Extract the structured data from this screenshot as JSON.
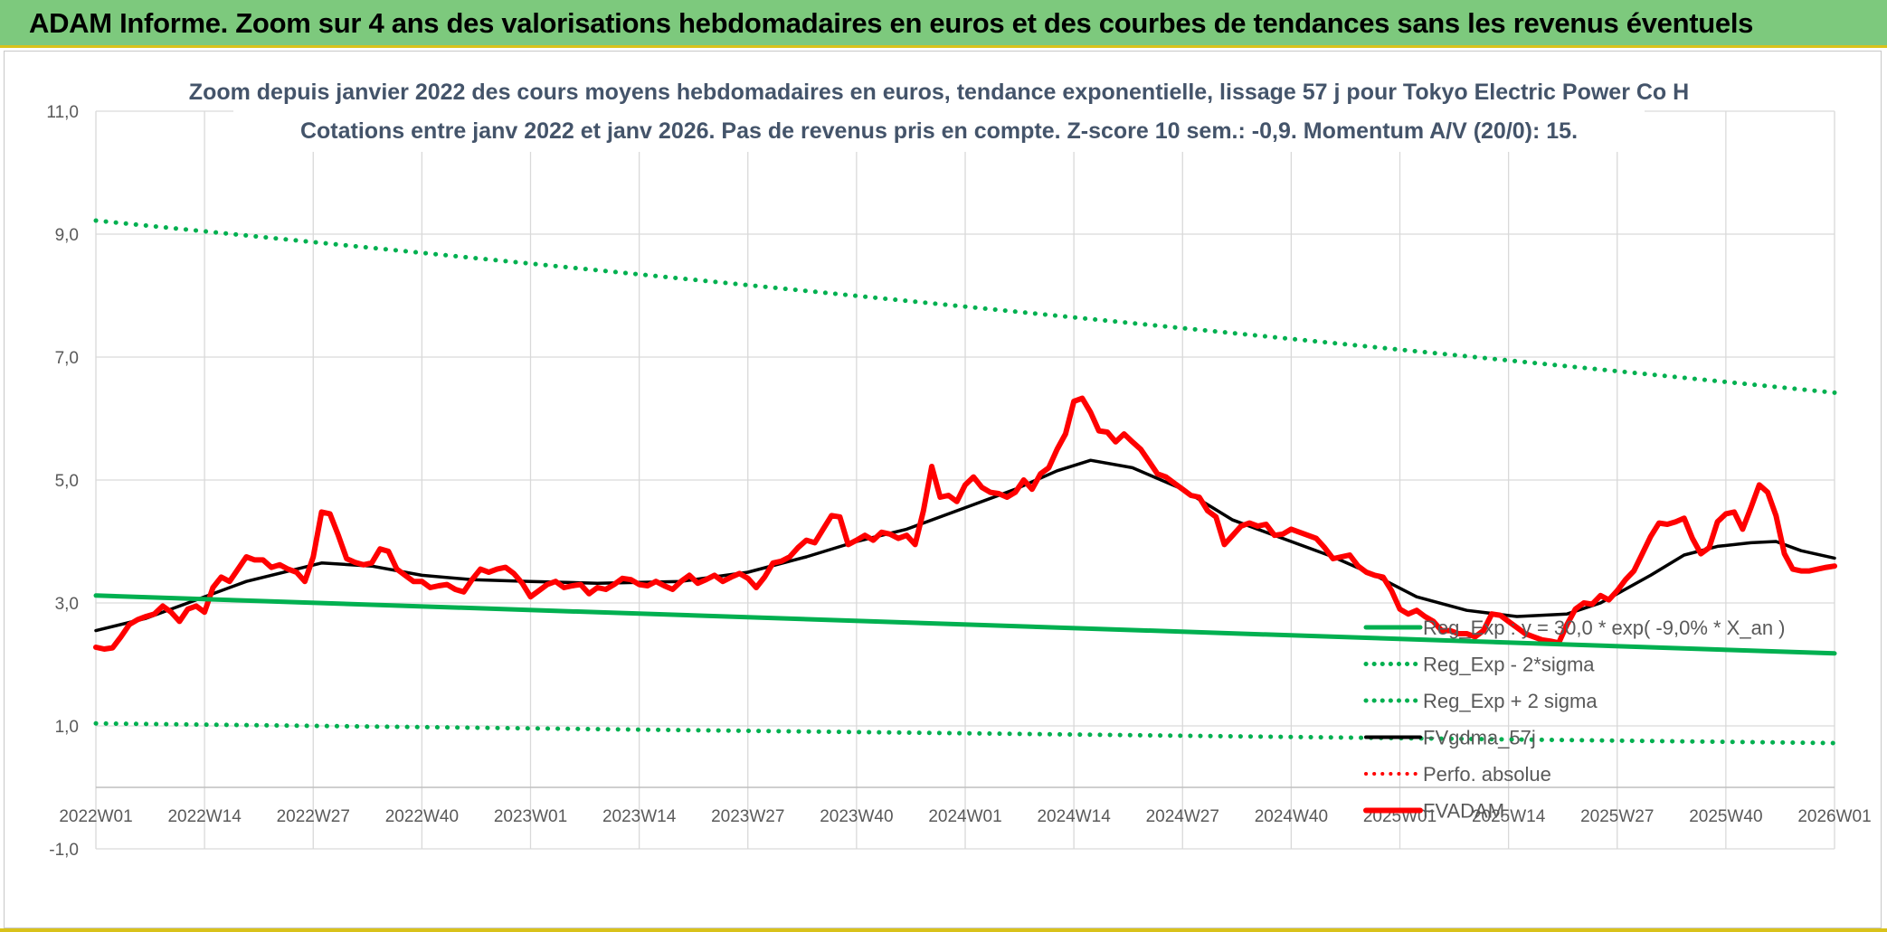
{
  "banner": {
    "title": "ADAM Informe. Zoom sur 4 ans des valorisations hebdomadaires en euros et des courbes de tendances sans les revenus éventuels"
  },
  "colors": {
    "banner_bg": "#7dc97d",
    "accent_gold": "#d9c21a",
    "green": "#00b050",
    "black": "#000000",
    "red": "#ff0000"
  },
  "chart_data": {
    "type": "line",
    "title": "Zoom depuis janvier 2022 des cours moyens hebdomadaires en euros, tendance exponentielle, lissage 57 j pour Tokyo Electric Power Co H",
    "subtitle": "Cotations entre janv 2022 et janv 2026. Pas de revenus pris en compte. Z-score 10 sem.: -0,9. Momentum A/V (20/0): 15.",
    "xlabel": "",
    "ylabel": "",
    "ylim": [
      -1,
      11
    ],
    "y_ticks": [
      "-1,0",
      "1,0",
      "3,0",
      "5,0",
      "7,0",
      "9,0",
      "11,0"
    ],
    "x_range": [
      0,
      208
    ],
    "x_ticks": [
      {
        "x": 0,
        "label": "2022W01"
      },
      {
        "x": 13,
        "label": "2022W14"
      },
      {
        "x": 26,
        "label": "2022W27"
      },
      {
        "x": 39,
        "label": "2022W40"
      },
      {
        "x": 52,
        "label": "2023W01"
      },
      {
        "x": 65,
        "label": "2023W14"
      },
      {
        "x": 78,
        "label": "2023W27"
      },
      {
        "x": 91,
        "label": "2023W40"
      },
      {
        "x": 104,
        "label": "2024W01"
      },
      {
        "x": 117,
        "label": "2024W14"
      },
      {
        "x": 130,
        "label": "2024W27"
      },
      {
        "x": 143,
        "label": "2024W40"
      },
      {
        "x": 156,
        "label": "2025W01"
      },
      {
        "x": 169,
        "label": "2025W14"
      },
      {
        "x": 182,
        "label": "2025W27"
      },
      {
        "x": 195,
        "label": "2025W40"
      },
      {
        "x": 208,
        "label": "2026W01"
      }
    ],
    "grid": true,
    "legend_position": "bottom-right",
    "series": [
      {
        "name": "Reg_Exp : y = 30,0 * exp( -9,0% *  X_an )",
        "color": "#00b050",
        "style": "solid",
        "width": 5,
        "points": [
          [
            0,
            3.12
          ],
          [
            208,
            2.18
          ]
        ]
      },
      {
        "name": "Reg_Exp - 2*sigma",
        "color": "#00b050",
        "style": "dotted",
        "width": 5,
        "points": [
          [
            0,
            1.04
          ],
          [
            208,
            0.72
          ]
        ]
      },
      {
        "name": "Reg_Exp + 2 sigma",
        "color": "#00b050",
        "style": "dotted",
        "width": 5,
        "points": [
          [
            0,
            9.22
          ],
          [
            208,
            6.42
          ]
        ]
      },
      {
        "name": "FVgdma_57j",
        "color": "#000000",
        "style": "solid",
        "width": 3.5,
        "points": [
          [
            0,
            2.55
          ],
          [
            6,
            2.75
          ],
          [
            12,
            3.05
          ],
          [
            18,
            3.35
          ],
          [
            24,
            3.55
          ],
          [
            27,
            3.65
          ],
          [
            33,
            3.6
          ],
          [
            39,
            3.45
          ],
          [
            45,
            3.38
          ],
          [
            52,
            3.35
          ],
          [
            60,
            3.32
          ],
          [
            70,
            3.35
          ],
          [
            78,
            3.5
          ],
          [
            85,
            3.75
          ],
          [
            91,
            4.0
          ],
          [
            97,
            4.2
          ],
          [
            104,
            4.55
          ],
          [
            110,
            4.85
          ],
          [
            115,
            5.15
          ],
          [
            119,
            5.32
          ],
          [
            124,
            5.2
          ],
          [
            130,
            4.85
          ],
          [
            136,
            4.35
          ],
          [
            142,
            4.05
          ],
          [
            148,
            3.75
          ],
          [
            153,
            3.45
          ],
          [
            158,
            3.1
          ],
          [
            164,
            2.88
          ],
          [
            170,
            2.78
          ],
          [
            176,
            2.82
          ],
          [
            180,
            3.0
          ],
          [
            186,
            3.45
          ],
          [
            190,
            3.78
          ],
          [
            194,
            3.92
          ],
          [
            198,
            3.98
          ],
          [
            201,
            4.0
          ],
          [
            204,
            3.85
          ],
          [
            208,
            3.73
          ]
        ]
      },
      {
        "name": "Perfo. absolue",
        "color": "#ff0000",
        "style": "dotted",
        "width": 3,
        "points": []
      },
      {
        "name": "FVADAM",
        "color": "#ff0000",
        "style": "solid",
        "width": 6,
        "points": [
          [
            0,
            2.28
          ],
          [
            1,
            2.25
          ],
          [
            2,
            2.27
          ],
          [
            3,
            2.45
          ],
          [
            4,
            2.65
          ],
          [
            5,
            2.73
          ],
          [
            6,
            2.78
          ],
          [
            7,
            2.82
          ],
          [
            8,
            2.95
          ],
          [
            9,
            2.85
          ],
          [
            10,
            2.7
          ],
          [
            11,
            2.9
          ],
          [
            12,
            2.95
          ],
          [
            13,
            2.85
          ],
          [
            14,
            3.25
          ],
          [
            15,
            3.42
          ],
          [
            16,
            3.35
          ],
          [
            17,
            3.55
          ],
          [
            18,
            3.75
          ],
          [
            19,
            3.7
          ],
          [
            20,
            3.7
          ],
          [
            21,
            3.58
          ],
          [
            22,
            3.62
          ],
          [
            23,
            3.55
          ],
          [
            24,
            3.5
          ],
          [
            25,
            3.35
          ],
          [
            26,
            3.75
          ],
          [
            27,
            4.48
          ],
          [
            28,
            4.45
          ],
          [
            29,
            4.1
          ],
          [
            30,
            3.72
          ],
          [
            31,
            3.66
          ],
          [
            32,
            3.62
          ],
          [
            33,
            3.65
          ],
          [
            34,
            3.88
          ],
          [
            35,
            3.84
          ],
          [
            36,
            3.55
          ],
          [
            37,
            3.45
          ],
          [
            38,
            3.35
          ],
          [
            39,
            3.35
          ],
          [
            40,
            3.25
          ],
          [
            41,
            3.28
          ],
          [
            42,
            3.3
          ],
          [
            43,
            3.22
          ],
          [
            44,
            3.18
          ],
          [
            45,
            3.38
          ],
          [
            46,
            3.55
          ],
          [
            47,
            3.5
          ],
          [
            48,
            3.55
          ],
          [
            49,
            3.58
          ],
          [
            50,
            3.48
          ],
          [
            51,
            3.32
          ],
          [
            52,
            3.1
          ],
          [
            53,
            3.2
          ],
          [
            54,
            3.3
          ],
          [
            55,
            3.35
          ],
          [
            56,
            3.25
          ],
          [
            57,
            3.28
          ],
          [
            58,
            3.3
          ],
          [
            59,
            3.15
          ],
          [
            60,
            3.25
          ],
          [
            61,
            3.22
          ],
          [
            62,
            3.3
          ],
          [
            63,
            3.4
          ],
          [
            64,
            3.38
          ],
          [
            65,
            3.3
          ],
          [
            66,
            3.28
          ],
          [
            67,
            3.35
          ],
          [
            68,
            3.28
          ],
          [
            69,
            3.22
          ],
          [
            70,
            3.35
          ],
          [
            71,
            3.45
          ],
          [
            72,
            3.32
          ],
          [
            73,
            3.38
          ],
          [
            74,
            3.45
          ],
          [
            75,
            3.35
          ],
          [
            76,
            3.42
          ],
          [
            77,
            3.48
          ],
          [
            78,
            3.4
          ],
          [
            79,
            3.25
          ],
          [
            80,
            3.42
          ],
          [
            81,
            3.65
          ],
          [
            82,
            3.68
          ],
          [
            83,
            3.75
          ],
          [
            84,
            3.9
          ],
          [
            85,
            4.02
          ],
          [
            86,
            3.98
          ],
          [
            87,
            4.2
          ],
          [
            88,
            4.42
          ],
          [
            89,
            4.4
          ],
          [
            90,
            3.95
          ],
          [
            91,
            4.02
          ],
          [
            92,
            4.1
          ],
          [
            93,
            4.02
          ],
          [
            94,
            4.15
          ],
          [
            95,
            4.12
          ],
          [
            96,
            4.05
          ],
          [
            97,
            4.1
          ],
          [
            98,
            3.95
          ],
          [
            99,
            4.5
          ],
          [
            100,
            5.22
          ],
          [
            101,
            4.72
          ],
          [
            102,
            4.75
          ],
          [
            103,
            4.65
          ],
          [
            104,
            4.92
          ],
          [
            105,
            5.05
          ],
          [
            106,
            4.88
          ],
          [
            107,
            4.8
          ],
          [
            108,
            4.78
          ],
          [
            109,
            4.72
          ],
          [
            110,
            4.8
          ],
          [
            111,
            5.0
          ],
          [
            112,
            4.85
          ],
          [
            113,
            5.1
          ],
          [
            114,
            5.2
          ],
          [
            115,
            5.5
          ],
          [
            116,
            5.75
          ],
          [
            117,
            6.28
          ],
          [
            118,
            6.33
          ],
          [
            119,
            6.1
          ],
          [
            120,
            5.8
          ],
          [
            121,
            5.78
          ],
          [
            122,
            5.62
          ],
          [
            123,
            5.75
          ],
          [
            124,
            5.62
          ],
          [
            125,
            5.5
          ],
          [
            126,
            5.3
          ],
          [
            127,
            5.1
          ],
          [
            128,
            5.05
          ],
          [
            129,
            4.95
          ],
          [
            130,
            4.85
          ],
          [
            131,
            4.75
          ],
          [
            132,
            4.72
          ],
          [
            133,
            4.5
          ],
          [
            134,
            4.4
          ],
          [
            135,
            3.95
          ],
          [
            136,
            4.1
          ],
          [
            137,
            4.25
          ],
          [
            138,
            4.3
          ],
          [
            139,
            4.25
          ],
          [
            140,
            4.28
          ],
          [
            141,
            4.1
          ],
          [
            142,
            4.12
          ],
          [
            143,
            4.2
          ],
          [
            144,
            4.15
          ],
          [
            145,
            4.1
          ],
          [
            146,
            4.05
          ],
          [
            147,
            3.9
          ],
          [
            148,
            3.72
          ],
          [
            149,
            3.75
          ],
          [
            150,
            3.78
          ],
          [
            151,
            3.6
          ],
          [
            152,
            3.5
          ],
          [
            153,
            3.45
          ],
          [
            154,
            3.42
          ],
          [
            155,
            3.2
          ],
          [
            156,
            2.9
          ],
          [
            157,
            2.82
          ],
          [
            158,
            2.88
          ],
          [
            159,
            2.78
          ],
          [
            160,
            2.7
          ],
          [
            161,
            2.55
          ],
          [
            162,
            2.55
          ],
          [
            163,
            2.5
          ],
          [
            164,
            2.5
          ],
          [
            165,
            2.45
          ],
          [
            166,
            2.55
          ],
          [
            167,
            2.82
          ],
          [
            168,
            2.8
          ],
          [
            169,
            2.7
          ],
          [
            170,
            2.6
          ],
          [
            171,
            2.5
          ],
          [
            172,
            2.45
          ],
          [
            173,
            2.4
          ],
          [
            174,
            2.38
          ],
          [
            175,
            2.35
          ],
          [
            176,
            2.65
          ],
          [
            177,
            2.9
          ],
          [
            178,
            3.0
          ],
          [
            179,
            2.98
          ],
          [
            180,
            3.12
          ],
          [
            181,
            3.05
          ],
          [
            182,
            3.2
          ],
          [
            183,
            3.38
          ],
          [
            184,
            3.52
          ],
          [
            185,
            3.8
          ],
          [
            186,
            4.08
          ],
          [
            187,
            4.3
          ],
          [
            188,
            4.28
          ],
          [
            189,
            4.32
          ],
          [
            190,
            4.38
          ],
          [
            191,
            4.05
          ],
          [
            192,
            3.8
          ],
          [
            193,
            3.9
          ],
          [
            194,
            4.32
          ],
          [
            195,
            4.45
          ],
          [
            196,
            4.48
          ],
          [
            197,
            4.2
          ],
          [
            198,
            4.55
          ],
          [
            199,
            4.92
          ],
          [
            200,
            4.8
          ],
          [
            201,
            4.42
          ],
          [
            202,
            3.8
          ],
          [
            203,
            3.55
          ],
          [
            204,
            3.52
          ],
          [
            205,
            3.52
          ],
          [
            206,
            3.55
          ],
          [
            207,
            3.58
          ],
          [
            208,
            3.6
          ]
        ]
      }
    ]
  }
}
